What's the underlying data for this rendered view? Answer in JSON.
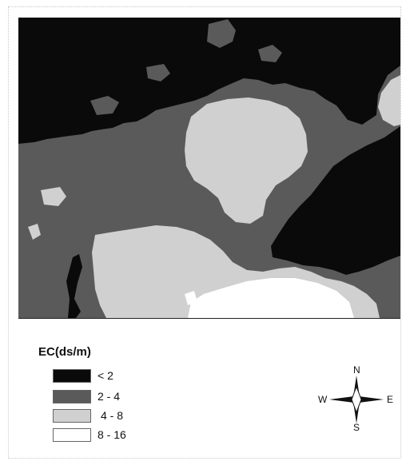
{
  "legend": {
    "title": "EC(ds/m)",
    "classes": [
      {
        "label": "< 2",
        "color": "#0a0a0a"
      },
      {
        "label": "2 - 4",
        "color": "#5a5a5a"
      },
      {
        "label": "4 - 8",
        "color": "#d0d0d0"
      },
      {
        "label": "8 - 16",
        "color": "#ffffff"
      }
    ]
  },
  "compass": {
    "n": "N",
    "s": "S",
    "e": "E",
    "w": "W"
  },
  "colors": {
    "very_low": "#0a0a0a",
    "low": "#5a5a5a",
    "medium": "#d0d0d0",
    "high": "#ffffff"
  }
}
